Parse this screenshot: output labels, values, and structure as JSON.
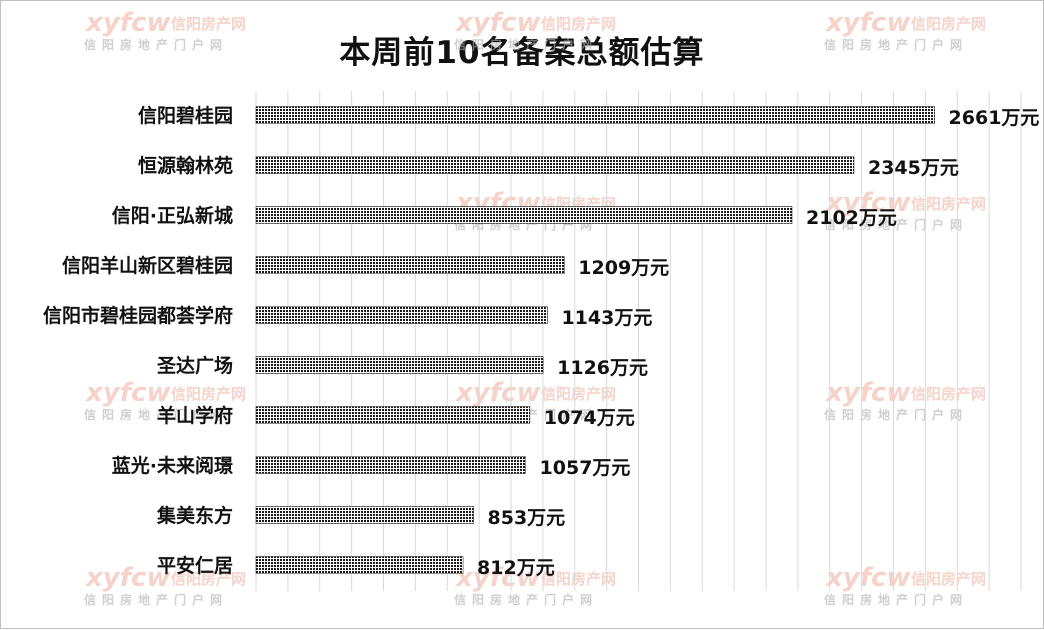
{
  "chart_data": {
    "type": "bar",
    "orientation": "horizontal",
    "title": "本周前10名备案总额估算",
    "unit": "万元",
    "categories": [
      "信阳碧桂园",
      "恒源翰林苑",
      "信阳·正弘新城",
      "信阳羊山新区碧桂园",
      "信阳市碧桂园都荟学府",
      "圣达广场",
      "羊山学府",
      "蓝光·未来阅璟",
      "集美东方",
      "平安仁居"
    ],
    "values": [
      2661,
      2345,
      2102,
      1209,
      1143,
      1126,
      1074,
      1057,
      853,
      812
    ],
    "value_labels": [
      "2661万元",
      "2345万元",
      "2102万元",
      "1209万元",
      "1143万元",
      "1126万元",
      "1074万元",
      "1057万元",
      "853万元",
      "812万元"
    ],
    "xlim": [
      0,
      3000
    ],
    "grid": true,
    "legend": "none",
    "bar_color": "#1a1a1a"
  },
  "watermark": {
    "logo": "xyfcw",
    "text": "信阳房产网",
    "sub": "信阳房地产门户网",
    "color": "#e8846a"
  }
}
